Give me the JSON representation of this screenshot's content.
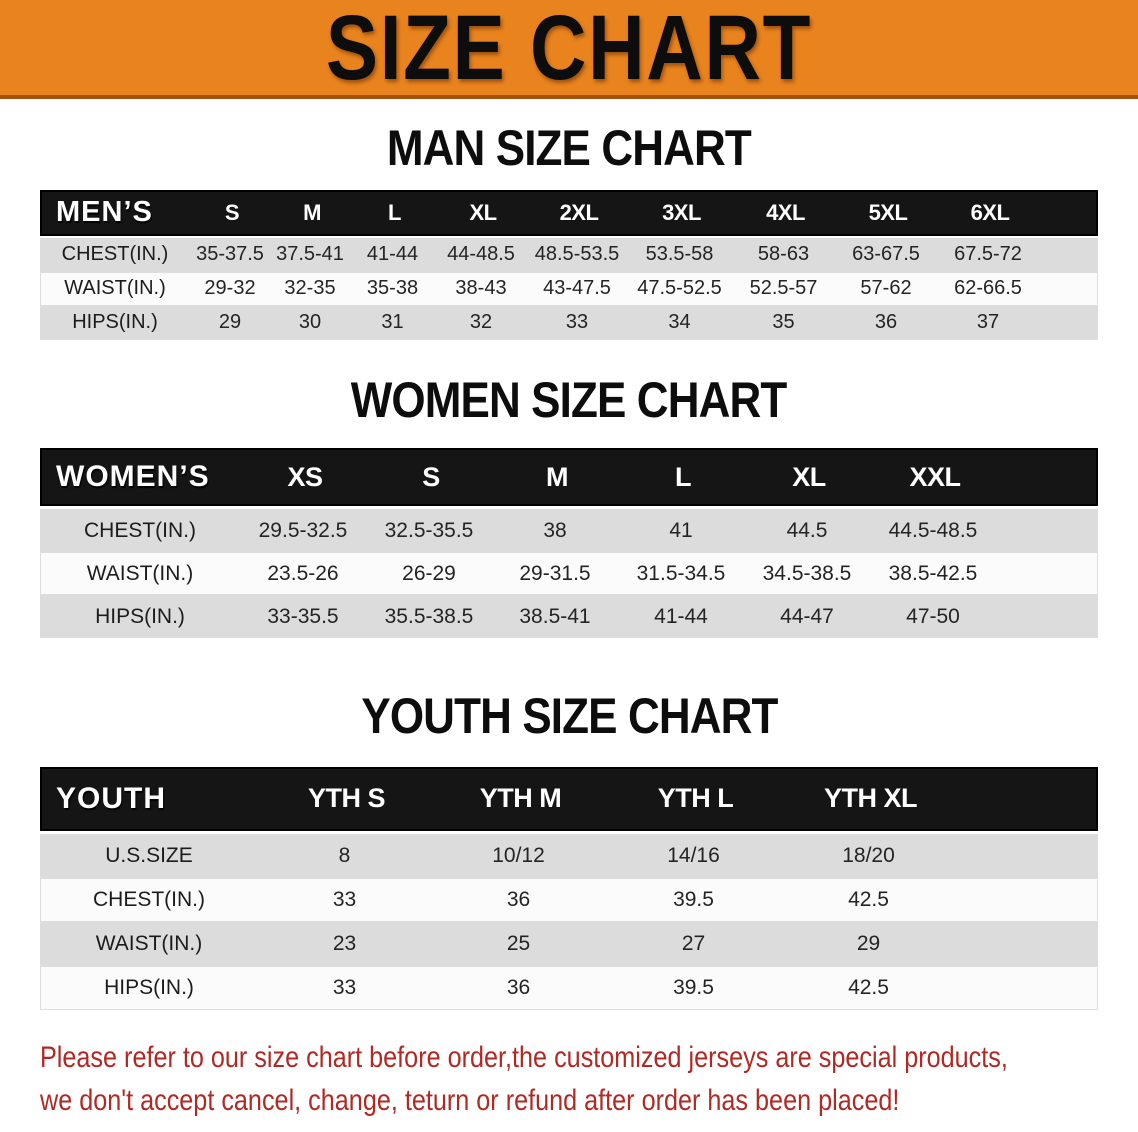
{
  "banner": {
    "title": "SIZE CHART"
  },
  "sections": [
    {
      "name": "men",
      "heading": "MAN SIZE CHART",
      "header": [
        "MEN’S",
        "S",
        "M",
        "L",
        "XL",
        "2XL",
        "3XL",
        "4XL",
        "5XL",
        "6XL"
      ],
      "rows": [
        {
          "label": "CHEST(IN.)",
          "values": [
            "35-37.5",
            "37.5-41",
            "41-44",
            "44-48.5",
            "48.5-53.5",
            "53.5-58",
            "58-63",
            "63-67.5",
            "67.5-72"
          ]
        },
        {
          "label": "WAIST(IN.)",
          "values": [
            "29-32",
            "32-35",
            "35-38",
            "38-43",
            "43-47.5",
            "47.5-52.5",
            "52.5-57",
            "57-62",
            "62-66.5"
          ]
        },
        {
          "label": "HIPS(IN.)",
          "values": [
            "29",
            "30",
            "31",
            "32",
            "33",
            "34",
            "35",
            "36",
            "37"
          ]
        }
      ]
    },
    {
      "name": "women",
      "heading": "WOMEN SIZE CHART",
      "header": [
        "WOMEN’S",
        "XS",
        "S",
        "M",
        "L",
        "XL",
        "XXL"
      ],
      "rows": [
        {
          "label": "CHEST(IN.)",
          "values": [
            "29.5-32.5",
            "32.5-35.5",
            "38",
            "41",
            "44.5",
            "44.5-48.5"
          ]
        },
        {
          "label": "WAIST(IN.)",
          "values": [
            "23.5-26",
            "26-29",
            "29-31.5",
            "31.5-34.5",
            "34.5-38.5",
            "38.5-42.5"
          ]
        },
        {
          "label": "HIPS(IN.)",
          "values": [
            "33-35.5",
            "35.5-38.5",
            "38.5-41",
            "41-44",
            "44-47",
            "47-50"
          ]
        }
      ]
    },
    {
      "name": "youth",
      "heading": "YOUTH SIZE CHART",
      "header": [
        "YOUTH",
        "YTH S",
        "YTH M",
        "YTH L",
        "YTH XL"
      ],
      "rows": [
        {
          "label": "U.S.SIZE",
          "values": [
            "8",
            "10/12",
            "14/16",
            "18/20"
          ]
        },
        {
          "label": "CHEST(IN.)",
          "values": [
            "33",
            "36",
            "39.5",
            "42.5"
          ]
        },
        {
          "label": "WAIST(IN.)",
          "values": [
            "23",
            "25",
            "27",
            "29"
          ]
        },
        {
          "label": "HIPS(IN.)",
          "values": [
            "33",
            "36",
            "39.5",
            "42.5"
          ]
        }
      ]
    }
  ],
  "footnote": {
    "line1": "Please refer to our size chart before order,the customized jerseys are special products,",
    "line2": "we don't accept cancel, change, teturn or refund after order has been placed!"
  },
  "colors": {
    "banner_bg": "#E8831E",
    "banner_border": "#A5520E",
    "banner_text": "#0D0D0D",
    "table_header_bg": "#151515",
    "table_header_text": "#FFFFFF",
    "row_gray": "#DCDCDC",
    "row_white": "#FBFBFB",
    "footnote_red": "#B02A25"
  }
}
